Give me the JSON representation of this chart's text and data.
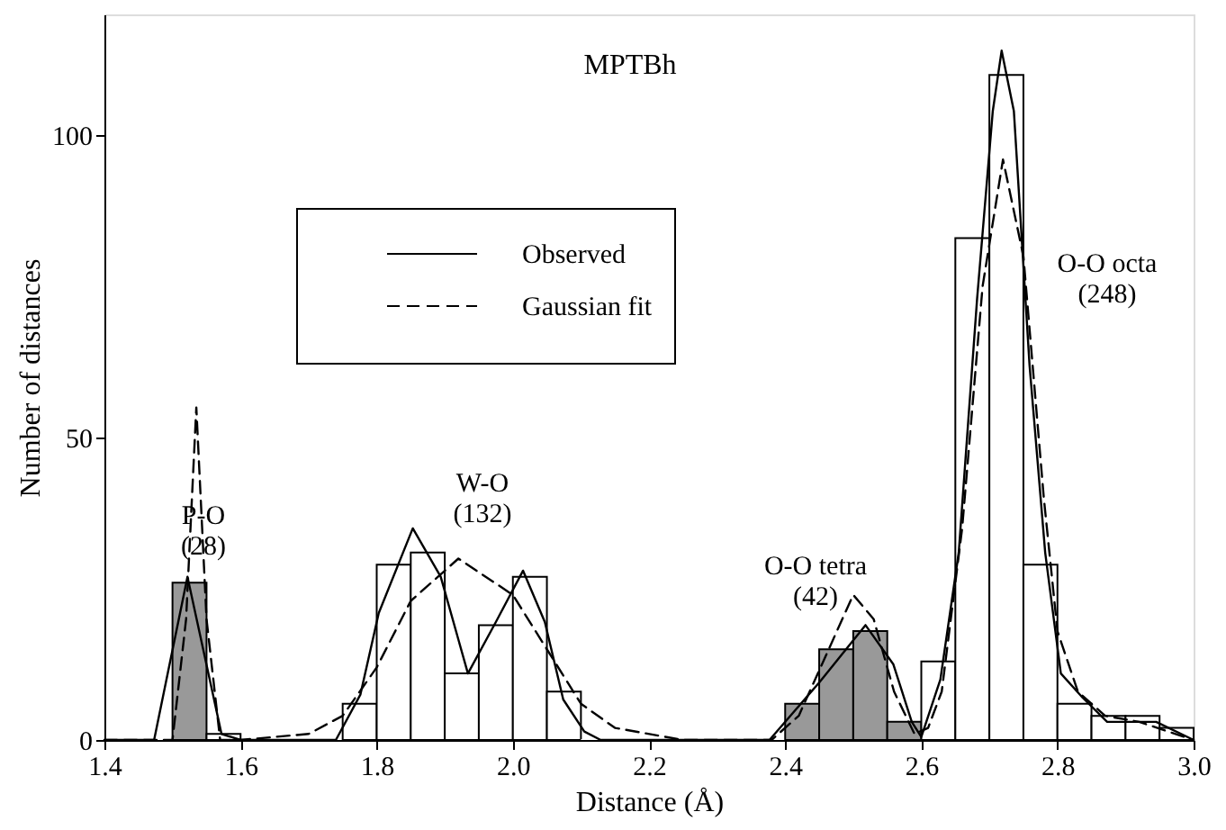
{
  "chart_data": {
    "type": "histogram",
    "title": "MPTBh",
    "xlabel": "Distance (Å)",
    "ylabel": "Number of distances",
    "bins": [
      1.45,
      1.5,
      1.55,
      1.6,
      1.65,
      1.7,
      1.75,
      1.8,
      1.85,
      1.9,
      1.95,
      2.0,
      2.05,
      2.1,
      2.15,
      2.2,
      2.25,
      2.3,
      2.35,
      2.4,
      2.45,
      2.5,
      2.55,
      2.6,
      2.65,
      2.7,
      2.75,
      2.8,
      2.85,
      2.9,
      2.95,
      3.0
    ],
    "values": [
      0,
      26,
      1,
      0,
      0,
      0,
      6,
      29,
      31,
      11,
      19,
      27,
      8,
      0,
      0,
      0,
      0,
      0,
      0,
      6,
      15,
      18,
      3,
      13,
      83,
      110,
      29,
      6,
      4,
      4,
      2
    ],
    "colors": [
      "#ffffff",
      "#999999",
      "#ffffff",
      "#ffffff",
      "#ffffff",
      "#ffffff",
      "#ffffff",
      "#ffffff",
      "#ffffff",
      "#ffffff",
      "#ffffff",
      "#ffffff",
      "#ffffff",
      "#ffffff",
      "#ffffff",
      "#ffffff",
      "#ffffff",
      "#ffffff",
      "#ffffff",
      "#999999",
      "#999999",
      "#999999",
      "#999999",
      "#ffffff",
      "#ffffff",
      "#ffffff",
      "#ffffff",
      "#ffffff",
      "#ffffff",
      "#ffffff",
      "#ffffff"
    ],
    "series": [
      {
        "name": "Observed",
        "type": "line",
        "color": "#000000",
        "line_style": "solid",
        "x": [
          1.4,
          1.473,
          1.522,
          1.572,
          1.6,
          1.74,
          1.776,
          1.803,
          1.853,
          1.894,
          1.934,
          1.975,
          2.015,
          2.047,
          2.074,
          2.105,
          2.129,
          2.377,
          2.45,
          2.518,
          2.559,
          2.586,
          2.6,
          2.628,
          2.655,
          2.682,
          2.705,
          2.718,
          2.736,
          2.759,
          2.782,
          2.805,
          2.837,
          2.873,
          2.945,
          3.0
        ],
        "values": [
          0,
          0,
          27,
          1,
          0,
          0,
          7.5,
          21,
          35,
          27,
          11,
          19.5,
          28,
          19.5,
          6.7,
          1.4,
          0,
          0,
          9.5,
          19,
          12.5,
          3,
          0.5,
          10,
          31,
          73,
          104,
          114,
          104,
          62,
          31,
          11,
          7,
          3,
          3,
          0
        ]
      },
      {
        "name": "Gaussian fit",
        "type": "line",
        "color": "#000000",
        "line_style": "dashed",
        "x": [
          1.4,
          1.5,
          1.52,
          1.535,
          1.55,
          1.57,
          1.6,
          1.7,
          1.75,
          1.8,
          1.85,
          1.92,
          2.0,
          2.05,
          2.1,
          2.15,
          2.25,
          2.38,
          2.42,
          2.46,
          2.5,
          2.53,
          2.56,
          2.59,
          2.61,
          2.63,
          2.66,
          2.69,
          2.72,
          2.75,
          2.78,
          2.8,
          2.83,
          2.87,
          2.92,
          3.0
        ],
        "values": [
          0,
          0,
          20,
          55,
          20,
          0,
          0,
          1,
          4,
          12,
          23,
          30,
          24,
          15,
          6,
          2,
          0,
          0,
          4,
          14,
          24,
          20,
          8,
          1,
          2,
          8,
          35,
          75,
          96,
          80,
          40,
          18,
          8,
          4,
          3,
          0
        ]
      }
    ],
    "annotations": [
      "P-O\n(28)",
      "W-O\n(132)",
      "O-O tetra\n(42)",
      "O-O octa\n(248)"
    ],
    "xlim": [
      1.4,
      3.0
    ],
    "ylim": [
      0,
      120
    ],
    "xticks": [
      1.4,
      1.6,
      1.8,
      {
        "value": 2,
        "label": "2.0"
      },
      2.2,
      2.4,
      2.6,
      2.8,
      {
        "value": 3,
        "label": "3.0"
      }
    ],
    "yticks": [
      0,
      50,
      100
    ],
    "legend": "top left",
    "grid": false
  }
}
